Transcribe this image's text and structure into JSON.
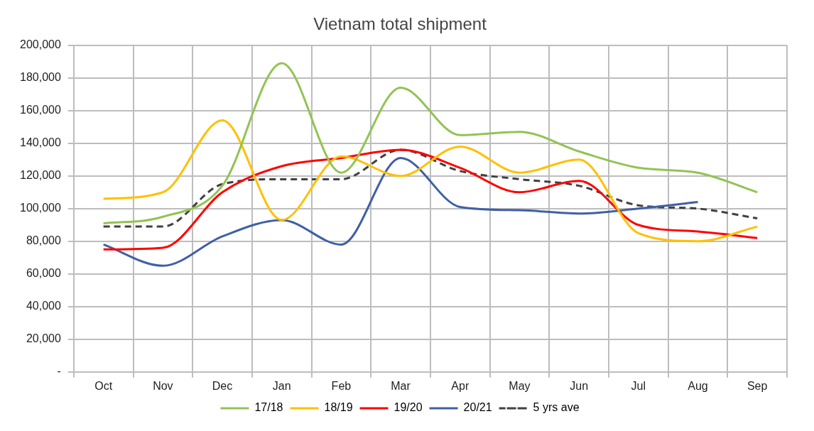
{
  "chart_data": {
    "type": "line",
    "title": "Vietnam total shipment",
    "categories": [
      "Oct",
      "Nov",
      "Dec",
      "Jan",
      "Feb",
      "Mar",
      "Apr",
      "May",
      "Jun",
      "Jul",
      "Aug",
      "Sep"
    ],
    "series": [
      {
        "name": "17/18",
        "color": "#92c353",
        "values": [
          91000,
          95000,
          114000,
          189000,
          122000,
          174000,
          145000,
          147000,
          135000,
          125000,
          122000,
          110000
        ]
      },
      {
        "name": "18/19",
        "color": "#ffc000",
        "values": [
          106000,
          110000,
          154000,
          93000,
          132000,
          120000,
          138000,
          122000,
          130000,
          85000,
          80000,
          89000
        ]
      },
      {
        "name": "19/20",
        "color": "#ff0000",
        "values": [
          75000,
          76000,
          110000,
          126000,
          131000,
          136000,
          125000,
          110000,
          117000,
          90000,
          86000,
          82000
        ]
      },
      {
        "name": "20/21",
        "color": "#3f5fa8",
        "values": [
          78000,
          65000,
          83000,
          93000,
          78000,
          131000,
          101000,
          99000,
          97000,
          100000,
          104000,
          null
        ]
      },
      {
        "name": "5 yrs ave",
        "color": "#404040",
        "line_style": "dashed",
        "values": [
          89000,
          89000,
          115000,
          118000,
          118000,
          136000,
          123000,
          118000,
          114000,
          102000,
          100000,
          94000
        ]
      }
    ],
    "ylim": [
      0,
      200000
    ],
    "yticks": [
      {
        "value": 0,
        "label": "-"
      },
      {
        "value": 20000,
        "label": "20,000"
      },
      {
        "value": 40000,
        "label": "40,000"
      },
      {
        "value": 60000,
        "label": "60,000"
      },
      {
        "value": 80000,
        "label": "80,000"
      },
      {
        "value": 100000,
        "label": "100,000"
      },
      {
        "value": 120000,
        "label": "120,000"
      },
      {
        "value": 140000,
        "label": "140,000"
      },
      {
        "value": 160000,
        "label": "160,000"
      },
      {
        "value": 180000,
        "label": "180,000"
      },
      {
        "value": 200000,
        "label": "200,000"
      }
    ],
    "grid": true,
    "legend": "bottom",
    "marker": "none",
    "line_style": "solid"
  }
}
